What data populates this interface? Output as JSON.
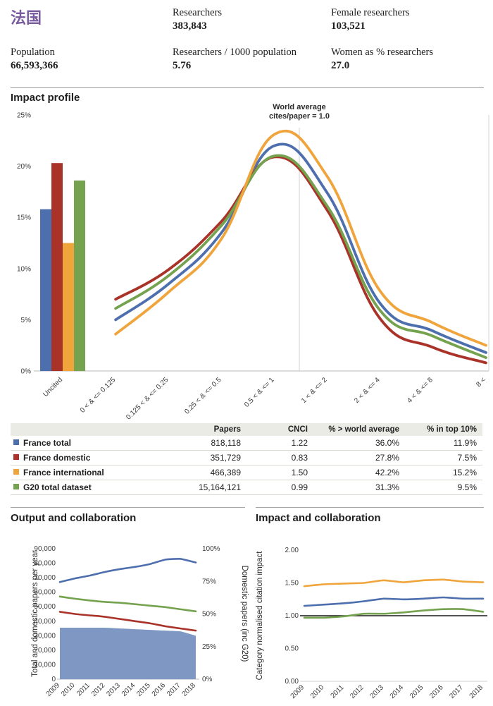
{
  "header": {
    "country": "法国",
    "stats": [
      {
        "label": "Researchers",
        "value": "383,843"
      },
      {
        "label": "Female researchers",
        "value": "103,521"
      },
      {
        "label": "Population",
        "value": "66,593,366"
      },
      {
        "label": "Researchers / 1000 population",
        "value": "5.76"
      },
      {
        "label": "Women as % researchers",
        "value": "27.0"
      }
    ]
  },
  "sections": {
    "impact_profile": "Impact profile",
    "output_collaboration": "Output and collaboration",
    "impact_collaboration": "Impact and collaboration"
  },
  "colors": {
    "blue": "#4e6fae",
    "red": "#a93229",
    "orange": "#f0a43c",
    "green": "#74a24f",
    "area": "#7e97c3",
    "black": "#1a1a1a",
    "purple": "#7a5c9e"
  },
  "table": {
    "columns": [
      "",
      "Papers",
      "CNCI",
      "% > world average",
      "% in top 10%"
    ],
    "rows": [
      {
        "label": "France total",
        "color_key": "blue",
        "values": [
          "818,118",
          "1.22",
          "36.0%",
          "11.9%"
        ]
      },
      {
        "label": "France domestic",
        "color_key": "red",
        "values": [
          "351,729",
          "0.83",
          "27.8%",
          "7.5%"
        ]
      },
      {
        "label": "France international",
        "color_key": "orange",
        "values": [
          "466,389",
          "1.50",
          "42.2%",
          "15.2%"
        ]
      },
      {
        "label": "G20 total dataset",
        "color_key": "green",
        "values": [
          "15,164,121",
          "0.99",
          "31.3%",
          "9.5%"
        ]
      }
    ]
  },
  "chart_data": [
    {
      "type": "line",
      "title": "Impact profile",
      "categories": [
        "Uncited",
        "0 < & <= 0.125",
        "0.125 < & <= 0.25",
        "0.25 < & <= 0.5",
        "0.5 < & <= 1",
        "1 < & <= 2",
        "2 < & <= 4",
        "4 < & <= 8",
        "8 <"
      ],
      "ylim": [
        0,
        25
      ],
      "yticks": [
        "0%",
        "5%",
        "10%",
        "15%",
        "20%",
        "25%"
      ],
      "annotation": [
        "World average",
        "cites/paper = 1.0"
      ],
      "bar_category": "Uncited",
      "series": [
        {
          "name": "France total",
          "color_key": "blue",
          "uncited_bar": 15.8,
          "values": [
            5.0,
            8.5,
            13.5,
            22.0,
            17.4,
            6.6,
            3.9,
            1.8
          ]
        },
        {
          "name": "France domestic",
          "color_key": "red",
          "uncited_bar": 20.3,
          "values": [
            7.0,
            9.9,
            14.6,
            20.9,
            15.7,
            5.1,
            2.3,
            0.8
          ]
        },
        {
          "name": "France international",
          "color_key": "orange",
          "uncited_bar": 12.5,
          "values": [
            3.6,
            7.7,
            12.9,
            23.1,
            19.0,
            7.8,
            4.7,
            2.5
          ]
        },
        {
          "name": "G20 total dataset",
          "color_key": "green",
          "uncited_bar": 18.6,
          "values": [
            6.1,
            9.3,
            14.2,
            21.0,
            16.1,
            5.9,
            3.4,
            1.3
          ]
        }
      ]
    },
    {
      "type": "area+line",
      "title": "Output and collaboration",
      "x": [
        "2009",
        "2010",
        "2011",
        "2012",
        "2013",
        "2014",
        "2015",
        "2016",
        "2017",
        "2018"
      ],
      "ylabel_left": "Total and domestic papers per year",
      "ylabel_right": "Domestic papers (inc G20)",
      "ylim_left": [
        0,
        90000
      ],
      "yticks_left": [
        "0",
        "10,000",
        "20,000",
        "30,000",
        "40,000",
        "50,000",
        "60,000",
        "70,000",
        "80,000",
        "90,000"
      ],
      "yticks_right": [
        "0%",
        "25%",
        "50%",
        "75%",
        "100%"
      ],
      "series": [
        {
          "name": "shaded area (blue)",
          "style": "area",
          "color_key": "area",
          "values": [
            35500,
            35500,
            35500,
            35500,
            35000,
            34500,
            34000,
            33500,
            33000,
            30000
          ]
        },
        {
          "name": "France total (blue)",
          "style": "line",
          "color_key": "blue",
          "values": [
            67000,
            69500,
            71500,
            74000,
            76000,
            77500,
            79500,
            82500,
            83000,
            80500
          ]
        },
        {
          "name": "France domestic (red)",
          "style": "line",
          "color_key": "red",
          "values": [
            46500,
            45000,
            44000,
            43000,
            41500,
            40000,
            38500,
            36500,
            35000,
            33500
          ]
        },
        {
          "name": "G20 (green)",
          "style": "line",
          "color_key": "green",
          "values": [
            57000,
            55500,
            54300,
            53300,
            52700,
            51700,
            50700,
            49700,
            48200,
            46800
          ]
        }
      ]
    },
    {
      "type": "line",
      "title": "Impact and collaboration",
      "x": [
        "2009",
        "2010",
        "2011",
        "2012",
        "2013",
        "2014",
        "2015",
        "2016",
        "2017",
        "2018"
      ],
      "ylabel": "Category normalised citation impact",
      "ylim": [
        0,
        2
      ],
      "yticks": [
        "0.00",
        "0.50",
        "1.00",
        "1.50",
        "2.00"
      ],
      "reference_line": 1.0,
      "series": [
        {
          "name": "France international (orange)",
          "color_key": "orange",
          "values": [
            1.45,
            1.48,
            1.49,
            1.5,
            1.54,
            1.51,
            1.54,
            1.55,
            1.52,
            1.51
          ]
        },
        {
          "name": "France total (blue)",
          "color_key": "blue",
          "values": [
            1.15,
            1.17,
            1.19,
            1.22,
            1.26,
            1.25,
            1.26,
            1.28,
            1.26,
            1.26
          ]
        },
        {
          "name": "G20 total dataset (green)",
          "color_key": "green",
          "values": [
            0.97,
            0.97,
            0.99,
            1.03,
            1.03,
            1.05,
            1.08,
            1.1,
            1.1,
            1.06
          ]
        }
      ]
    }
  ]
}
